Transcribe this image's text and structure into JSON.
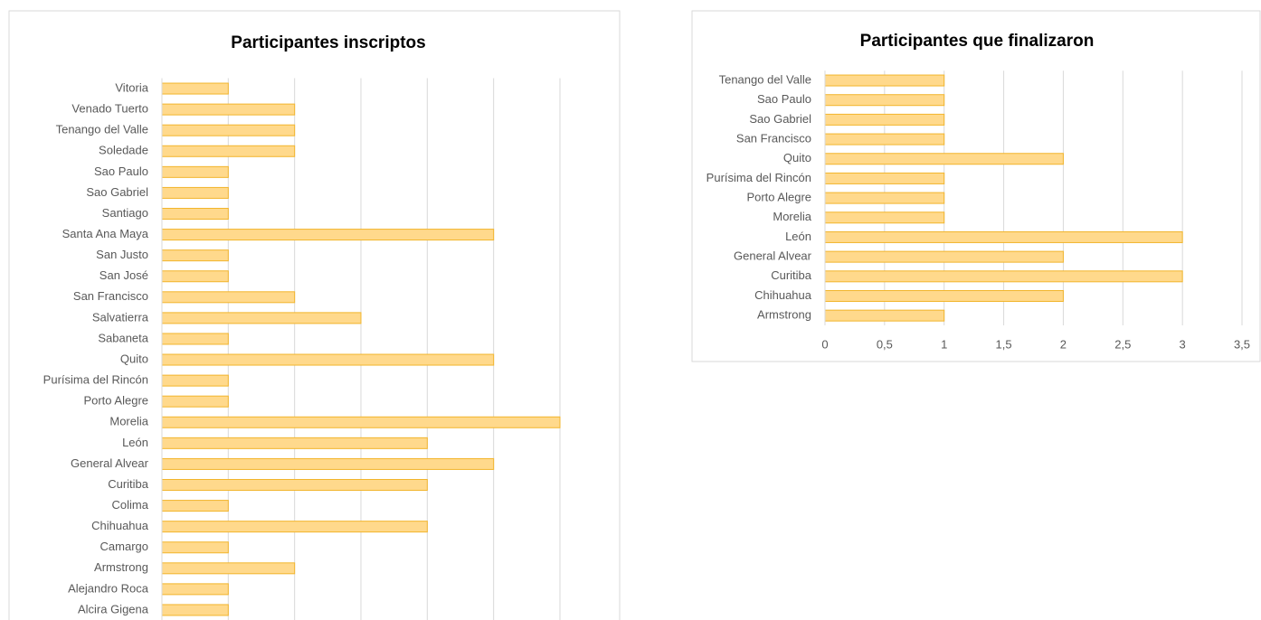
{
  "chart_data": [
    {
      "type": "bar",
      "orientation": "horizontal",
      "title": "Participantes inscriptos",
      "categories": [
        "Vitoria",
        "Venado Tuerto",
        "Tenango del Valle",
        "Soledade",
        "Sao Paulo",
        "Sao Gabriel",
        "Santiago",
        "Santa Ana Maya",
        "San Justo",
        "San José",
        "San Francisco",
        "Salvatierra",
        "Sabaneta",
        "Quito",
        "Purísima del Rincón",
        "Porto Alegre",
        "Morelia",
        "León",
        "General Alvear",
        "Curitiba",
        "Colima",
        "Chihuahua",
        "Camargo",
        "Armstrong",
        "Alejandro Roca",
        "Alcira Gigena"
      ],
      "values": [
        1,
        2,
        2,
        2,
        1,
        1,
        1,
        5,
        1,
        1,
        2,
        3,
        1,
        5,
        1,
        1,
        6,
        4,
        5,
        4,
        1,
        4,
        1,
        2,
        1,
        1
      ],
      "color": "#ffd98c",
      "edge_color": "#f2b52c",
      "xlim": [
        0,
        6
      ],
      "xticks": [
        0,
        1,
        2,
        3,
        4,
        5,
        6
      ],
      "grid": true
    },
    {
      "type": "bar",
      "orientation": "horizontal",
      "title": "Participantes que finalizaron",
      "categories": [
        "Tenango del Valle",
        "Sao Paulo",
        "Sao Gabriel",
        "San Francisco",
        "Quito",
        "Purísima del Rincón",
        "Porto Alegre",
        "Morelia",
        "León",
        "General Alvear",
        "Curitiba",
        "Chihuahua",
        "Armstrong"
      ],
      "values": [
        1,
        1,
        1,
        1,
        2,
        1,
        1,
        1,
        3,
        2,
        3,
        2,
        1
      ],
      "color": "#ffd98c",
      "edge_color": "#f2b52c",
      "xlim": [
        0,
        3.5
      ],
      "xticks": [
        0,
        {
          "value": 0.5,
          "label": "0,5"
        },
        1,
        {
          "value": 1.5,
          "label": "1,5"
        },
        2,
        {
          "value": 2.5,
          "label": "2,5"
        },
        3,
        {
          "value": 3.5,
          "label": "3,5"
        }
      ],
      "grid": true
    }
  ]
}
